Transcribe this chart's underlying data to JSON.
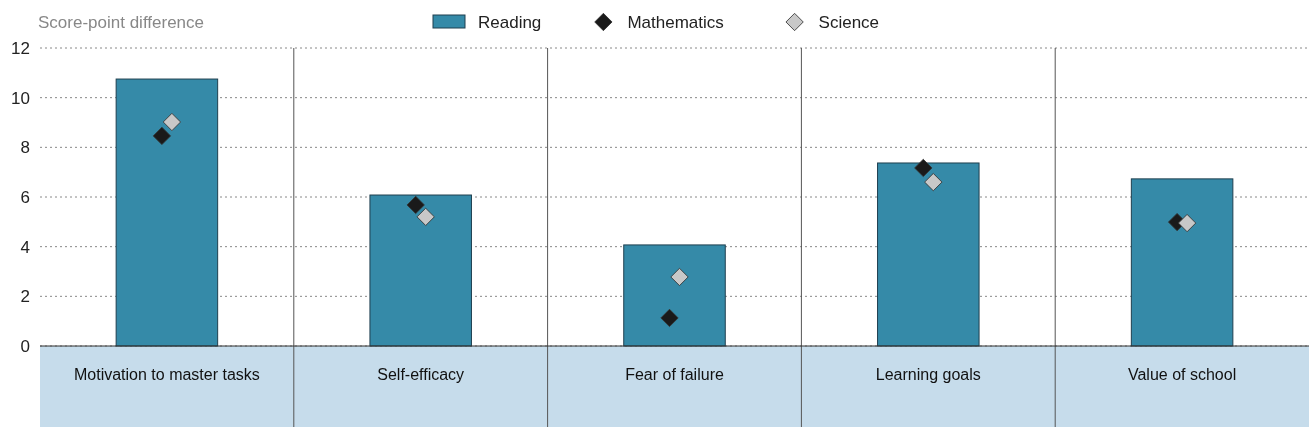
{
  "chart_data": {
    "type": "bar",
    "ylabel": "Score-point difference",
    "categories": [
      "Motivation to master tasks",
      "Self-efficacy",
      "Fear of failure",
      "Learning goals",
      "Value of school"
    ],
    "series": [
      {
        "name": "Reading",
        "color": "#358aa8",
        "values": [
          10.75,
          6.08,
          4.07,
          7.37,
          6.73
        ]
      },
      {
        "name": "Mathematics",
        "type": "scatter",
        "color": "#1a1a1a",
        "x": [
          "Motivation to master tasks",
          "Self-efficacy",
          "Fear of failure",
          "Learning goals",
          "Value of school"
        ],
        "values": [
          8.46,
          5.68,
          1.13,
          7.17,
          4.99
        ]
      },
      {
        "name": "Science",
        "type": "scatter",
        "color": "#c8c8c8",
        "x": [
          "Motivation to master tasks",
          "Self-efficacy",
          "Fear of failure",
          "Learning goals",
          "Value of school"
        ],
        "values": [
          9.02,
          5.2,
          2.78,
          6.6,
          4.95
        ]
      }
    ],
    "ylim": [
      0,
      12
    ],
    "yticks": [
      0,
      2,
      4,
      6,
      8,
      10,
      12
    ],
    "grid": "y",
    "legend": "top",
    "marker": "diamond"
  }
}
